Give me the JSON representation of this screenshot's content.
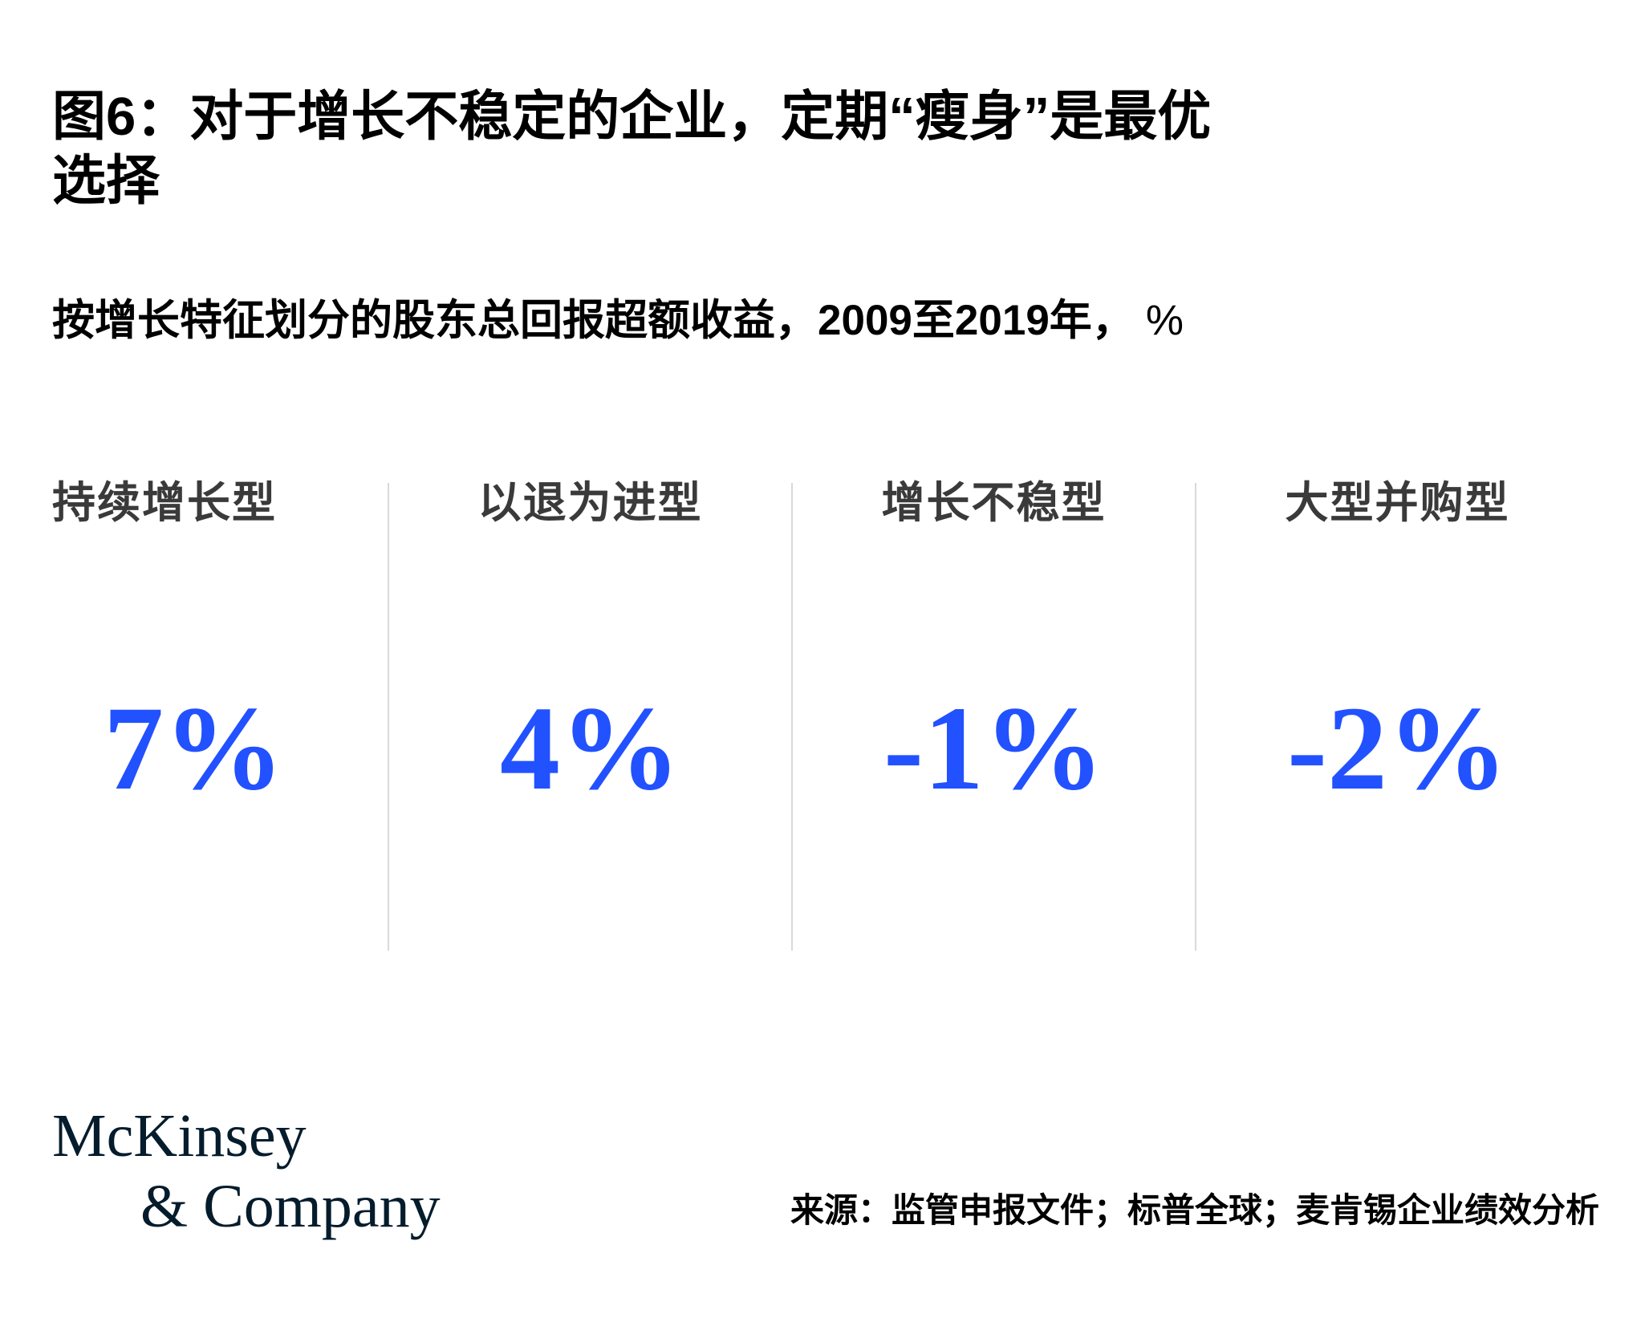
{
  "page": {
    "title_line1": "图6：对于增长不稳定的企业，定期“瘦身”是最优",
    "title_line2": "选择",
    "subtitle_main": "按增长特征划分的股东总回报超额收益，2009至2019年，",
    "subtitle_unit": "%"
  },
  "columns": [
    {
      "label": "持续增长型",
      "value": "7%"
    },
    {
      "label": "以退为进型",
      "value": "4%"
    },
    {
      "label": "增长不稳型",
      "value": "-1%"
    },
    {
      "label": "大型并购型",
      "value": "-2%"
    }
  ],
  "footer": {
    "logo_line1": "McKinsey",
    "logo_line2": "& Company",
    "source": "来源：监管申报文件；标普全球；麦肯锡企业绩效分析"
  },
  "colors": {
    "accent_blue": "#2251FF",
    "logo_navy": "#051C2C",
    "header_gray": "#3A3A3A",
    "divider_gray": "#D9D9D9"
  },
  "chart_data": {
    "type": "table",
    "title": "图6：对于增长不稳定的企业，定期“瘦身”是最优选择",
    "subtitle": "按增长特征划分的股东总回报超额收益，2009至2019年，%",
    "categories": [
      "持续增长型",
      "以退为进型",
      "增长不稳型",
      "大型并购型"
    ],
    "values": [
      7,
      4,
      -1,
      -2
    ],
    "unit": "%",
    "value_labels": [
      "7%",
      "4%",
      "-1%",
      "-2%"
    ],
    "source": "来源：监管申报文件；标普全球；麦肯锡企业绩效分析"
  }
}
